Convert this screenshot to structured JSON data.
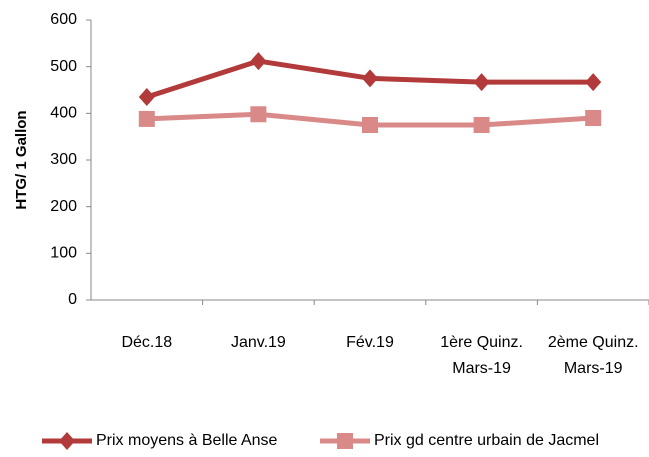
{
  "chart_data": {
    "type": "line",
    "y_label": "HTG/ 1 Gallon",
    "categories": [
      "Déc.18",
      "Janv.19",
      "Fév.19",
      "1ère  Quinz. Mars-19",
      "2ème  Quinz. Mars-19"
    ],
    "series": [
      {
        "name": "Prix moyens à Belle Anse",
        "color": "#b23a3a",
        "marker": "diamond",
        "values": [
          435,
          512,
          475,
          467,
          467
        ]
      },
      {
        "name": "Prix gd centre urbain de Jacmel",
        "color": "#d98a88",
        "marker": "square",
        "values": [
          388,
          398,
          375,
          375,
          390
        ]
      }
    ],
    "ylim": [
      0,
      600
    ],
    "yticks": [
      0,
      100,
      200,
      300,
      400,
      500,
      600
    ],
    "grid": false
  }
}
